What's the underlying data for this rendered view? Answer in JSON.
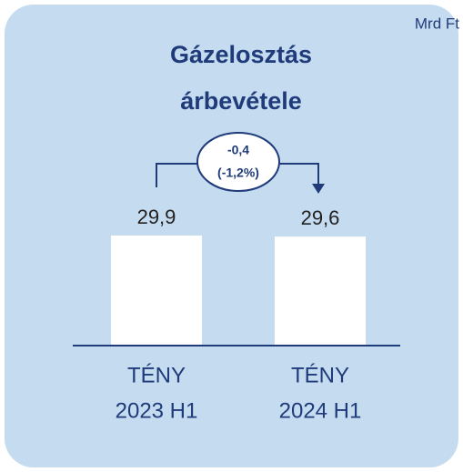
{
  "chart_data": {
    "type": "bar",
    "title": [
      "Gázelosztás",
      "árbevétele"
    ],
    "unit_label": "Mrd Ft",
    "categories": [
      [
        "TÉNY",
        "2023 H1"
      ],
      [
        "TÉNY",
        "2024 H1"
      ]
    ],
    "values": [
      29.9,
      29.6
    ],
    "value_labels": [
      "29,9",
      "29,6"
    ],
    "color": "#ffffff",
    "change_label": "-0,4",
    "change_pct_label": "(-1,2%)"
  }
}
